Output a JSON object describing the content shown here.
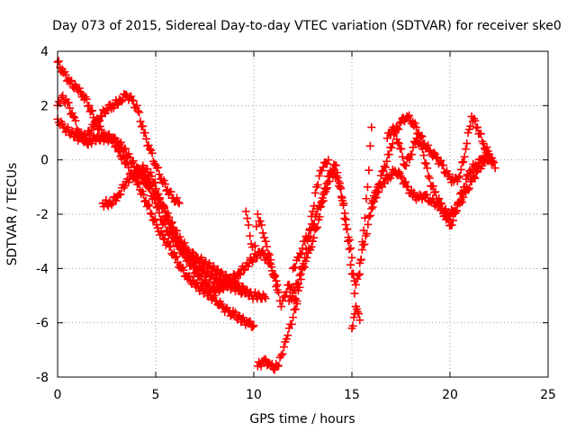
{
  "chart_data": {
    "type": "scatter",
    "title": "Day 073 of 2015, Sidereal Day-to-day VTEC variation (SDTVAR) for receiver ske0",
    "xlabel": "GPS time / hours",
    "ylabel": "SDTVAR / TECUs",
    "xlim": [
      0,
      25
    ],
    "ylim": [
      -8,
      4
    ],
    "xticks": [
      "0",
      "5",
      "10",
      "15",
      "20",
      "25"
    ],
    "yticks": [
      "-8",
      "-6",
      "-4",
      "-2",
      "0",
      "2",
      "4"
    ],
    "grid": true,
    "marker": "+",
    "color": "#ff0000",
    "series": [
      {
        "x": [
          0.0,
          0.3,
          0.6,
          1.0,
          1.3,
          1.6,
          2.0,
          2.4,
          2.8,
          3.1,
          3.5,
          3.8,
          4.0,
          4.2,
          4.5,
          4.8,
          5.1,
          5.4,
          5.7,
          6.0,
          6.3,
          6.6,
          7.0,
          7.4,
          7.8,
          8.1,
          8.4,
          8.7,
          9.0,
          9.4,
          9.7,
          10.0
        ],
        "y": [
          3.6,
          3.2,
          2.9,
          2.6,
          2.4,
          2.0,
          1.3,
          0.9,
          0.8,
          0.3,
          -0.1,
          -0.6,
          -0.8,
          -1.1,
          -1.5,
          -2.0,
          -2.5,
          -2.9,
          -3.2,
          -3.6,
          -4.0,
          -4.3,
          -4.6,
          -4.8,
          -5.0,
          -5.2,
          -5.4,
          -5.6,
          -5.7,
          -5.9,
          -6.0,
          -6.1
        ]
      },
      {
        "x": [
          0.0,
          0.2,
          0.5,
          0.8,
          1.1,
          1.5,
          1.9,
          2.3,
          2.7,
          3.0,
          3.4,
          3.8,
          4.2,
          4.6,
          5.0,
          5.3,
          5.6,
          6.0,
          6.3,
          6.7,
          7.0,
          7.4,
          7.8,
          8.2,
          8.6,
          9.0,
          9.3,
          9.6
        ],
        "y": [
          2.0,
          2.3,
          2.1,
          1.6,
          1.0,
          0.6,
          0.8,
          0.8,
          0.8,
          0.7,
          0.4,
          -0.1,
          -0.5,
          -1.0,
          -1.6,
          -2.2,
          -2.6,
          -3.0,
          -3.3,
          -3.6,
          -3.9,
          -4.1,
          -4.3,
          -4.5,
          -4.6,
          -4.7,
          -4.8,
          -4.9
        ]
      },
      {
        "x": [
          0.0,
          0.3,
          0.7,
          1.1,
          1.5,
          1.9,
          2.2,
          2.5,
          2.8,
          3.2,
          3.5,
          3.8,
          4.1,
          4.4,
          4.7,
          5.0,
          5.3,
          5.6,
          5.9,
          6.2
        ],
        "y": [
          1.5,
          1.2,
          1.0,
          0.8,
          0.9,
          1.3,
          1.6,
          1.9,
          2.0,
          2.2,
          2.4,
          2.2,
          1.8,
          1.0,
          0.4,
          -0.2,
          -0.7,
          -1.1,
          -1.4,
          -1.6
        ]
      },
      {
        "x": [
          2.3,
          2.7,
          3.1,
          3.5,
          3.9,
          4.3,
          4.7,
          5.1,
          5.5,
          5.9,
          6.3,
          6.7,
          7.1,
          7.5,
          7.9,
          8.3,
          8.7,
          9.1,
          9.5,
          9.9,
          10.3,
          10.6
        ],
        "y": [
          -1.6,
          -1.6,
          -1.3,
          -0.8,
          -0.5,
          -0.6,
          -0.9,
          -1.4,
          -1.9,
          -2.5,
          -3.0,
          -3.4,
          -3.6,
          -3.8,
          -4.0,
          -4.2,
          -4.4,
          -4.6,
          -4.8,
          -5.0,
          -5.0,
          -5.1
        ]
      },
      {
        "x": [
          4.0,
          4.4,
          4.8,
          5.2,
          5.6,
          6.0,
          6.4,
          6.8,
          7.2,
          7.6,
          8.0,
          8.4,
          8.8,
          9.2,
          9.6,
          10.0,
          10.4,
          10.8,
          11.2
        ],
        "y": [
          -0.5,
          -0.3,
          -0.6,
          -1.4,
          -2.2,
          -2.9,
          -3.4,
          -3.9,
          -4.3,
          -4.6,
          -4.8,
          -4.7,
          -4.4,
          -4.2,
          -3.9,
          -3.6,
          -3.4,
          -3.8,
          -4.6
        ]
      },
      {
        "x": [
          9.6,
          9.8,
          10.0,
          10.2,
          10.4,
          10.6,
          10.8,
          11.0,
          11.2,
          11.4,
          11.6,
          11.8,
          12.0,
          12.2
        ],
        "y": [
          -1.9,
          -2.8,
          -3.6,
          -2.0,
          -2.4,
          -3.0,
          -3.5,
          -4.2,
          -4.8,
          -5.4,
          -5.0,
          -4.6,
          -4.9,
          -5.3
        ]
      },
      {
        "x": [
          10.2,
          10.5,
          10.8,
          11.0,
          11.2,
          11.4,
          11.6,
          11.8,
          12.0,
          12.2,
          12.4,
          12.6,
          12.8,
          13.0,
          13.2,
          13.4,
          13.6,
          13.8
        ],
        "y": [
          -7.6,
          -7.4,
          -7.5,
          -7.7,
          -7.6,
          -7.2,
          -6.7,
          -6.2,
          -5.8,
          -5.2,
          -4.4,
          -3.6,
          -2.8,
          -1.9,
          -1.0,
          -0.4,
          -0.1,
          0.0
        ]
      },
      {
        "x": [
          11.8,
          12.1,
          12.4,
          12.7,
          13.0,
          13.3,
          13.6,
          13.9,
          14.2,
          14.5,
          14.8,
          15.0,
          15.2,
          15.4,
          15.6,
          15.8,
          16.0
        ],
        "y": [
          -5.2,
          -4.8,
          -4.2,
          -3.6,
          -3.0,
          -2.2,
          -1.2,
          -0.4,
          -0.2,
          -1.4,
          -3.0,
          -4.2,
          -4.6,
          -4.2,
          -2.6,
          -1.0,
          1.2
        ]
      },
      {
        "x": [
          12.0,
          12.3,
          12.6,
          12.9,
          13.2,
          13.5,
          13.8,
          14.1,
          14.4,
          14.7,
          15.0,
          15.2
        ],
        "y": [
          -4.0,
          -3.6,
          -3.0,
          -2.6,
          -2.0,
          -1.4,
          -0.8,
          -0.4,
          -1.0,
          -2.2,
          -3.6,
          -5.4
        ]
      },
      {
        "x": [
          15.0,
          15.1,
          15.2,
          15.3,
          15.4
        ],
        "y": [
          -6.2,
          -5.8,
          -5.4,
          -5.6,
          -5.9
        ]
      },
      {
        "x": [
          15.4,
          15.7,
          16.0,
          16.3,
          16.6,
          16.9,
          17.2,
          17.5,
          17.8,
          18.1,
          18.4,
          18.7,
          19.0,
          19.3,
          19.6,
          19.9,
          20.2,
          20.5,
          20.8,
          21.1,
          21.4,
          21.7,
          22.0,
          22.3
        ],
        "y": [
          -3.8,
          -2.8,
          -1.8,
          -1.0,
          -0.4,
          0.2,
          1.0,
          1.4,
          1.6,
          1.4,
          1.0,
          0.6,
          0.3,
          0.1,
          -0.2,
          -0.6,
          -0.8,
          -0.6,
          0.4,
          1.6,
          1.2,
          0.6,
          0.2,
          -0.3
        ]
      },
      {
        "x": [
          16.0,
          16.3,
          16.6,
          16.9,
          17.2,
          17.5,
          17.8,
          18.1,
          18.4,
          18.7,
          19.0,
          19.3,
          19.6,
          19.9,
          20.2,
          20.5,
          20.8,
          21.1,
          21.4,
          21.7,
          22.0
        ],
        "y": [
          -1.6,
          -1.2,
          -0.8,
          -0.6,
          -0.4,
          -0.6,
          -1.0,
          -1.3,
          -1.4,
          -1.3,
          -1.5,
          -1.6,
          -1.8,
          -2.0,
          -1.9,
          -1.6,
          -1.2,
          -0.8,
          -0.4,
          -0.1,
          0.1
        ]
      },
      {
        "x": [
          16.8,
          17.1,
          17.4,
          17.7,
          18.0,
          18.3,
          18.6,
          18.9,
          19.2,
          19.5,
          19.8,
          20.1,
          20.4,
          20.7,
          21.0,
          21.3,
          21.6,
          21.9,
          22.2
        ],
        "y": [
          0.8,
          1.2,
          0.6,
          -0.2,
          0.2,
          0.8,
          0.4,
          -0.6,
          -1.2,
          -1.6,
          -2.2,
          -2.4,
          -1.6,
          -1.0,
          -0.4,
          -0.2,
          0.0,
          0.2,
          -0.1
        ]
      }
    ]
  }
}
